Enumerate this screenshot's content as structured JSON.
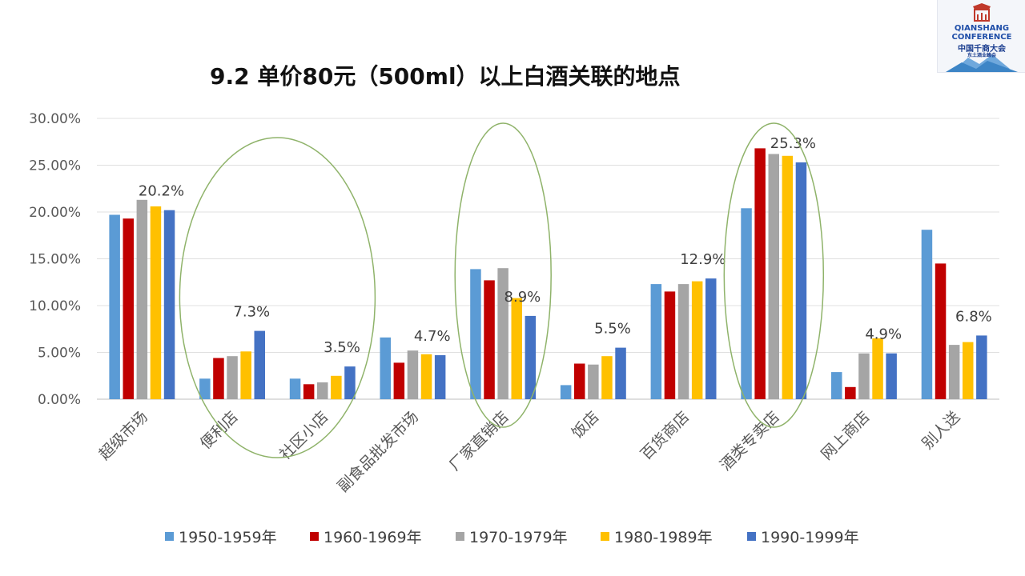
{
  "title": "9.2 单价80元（500ml）以上白酒关联的地点",
  "logo": {
    "line1": "QIANSHANG",
    "line2": "CONFERENCE",
    "line3": "中国千商大会",
    "line4": "东土酒业峰会"
  },
  "chart_data": {
    "type": "bar",
    "title": "9.2 单价80元（500ml）以上白酒关联的地点",
    "categories": [
      "超级市场",
      "便利店",
      "社区小店",
      "副食品批发市场",
      "厂家直销店",
      "饭店",
      "百货商店",
      "酒类专卖店",
      "网上商店",
      "别人送"
    ],
    "series": [
      {
        "name": "1950-1959年",
        "color": "#5b9bd5",
        "values": [
          19.7,
          2.2,
          2.2,
          6.6,
          13.9,
          1.5,
          12.3,
          20.4,
          2.9,
          18.1
        ]
      },
      {
        "name": "1960-1969年",
        "color": "#c00000",
        "values": [
          19.3,
          4.4,
          1.6,
          3.9,
          12.7,
          3.8,
          11.5,
          26.8,
          1.3,
          14.5
        ]
      },
      {
        "name": "1970-1979年",
        "color": "#a5a5a5",
        "values": [
          21.3,
          4.6,
          1.8,
          5.2,
          14.0,
          3.7,
          12.3,
          26.2,
          4.9,
          5.8
        ]
      },
      {
        "name": "1980-1989年",
        "color": "#ffc000",
        "values": [
          20.6,
          5.1,
          2.5,
          4.8,
          10.8,
          4.6,
          12.6,
          26.0,
          6.5,
          6.1
        ]
      },
      {
        "name": "1990-1999年",
        "color": "#4472c4",
        "values": [
          20.2,
          7.3,
          3.5,
          4.7,
          8.9,
          5.5,
          12.9,
          25.3,
          4.9,
          6.8
        ]
      }
    ],
    "data_labels": [
      "20.2%",
      "7.3%",
      "3.5%",
      "4.7%",
      "8.9%",
      "5.5%",
      "12.9%",
      "25.3%",
      "4.9%",
      "6.8%"
    ],
    "highlight_ellipses": [
      "便利店 / 社区小店",
      "厂家直销店",
      "酒类专卖店"
    ],
    "highlight_color": "#8fb36a",
    "yticks": [
      "0.00%",
      "5.00%",
      "10.00%",
      "15.00%",
      "20.00%",
      "25.00%",
      "30.00%"
    ],
    "ylim": [
      0,
      30
    ],
    "grid": true,
    "legend_position": "bottom"
  }
}
